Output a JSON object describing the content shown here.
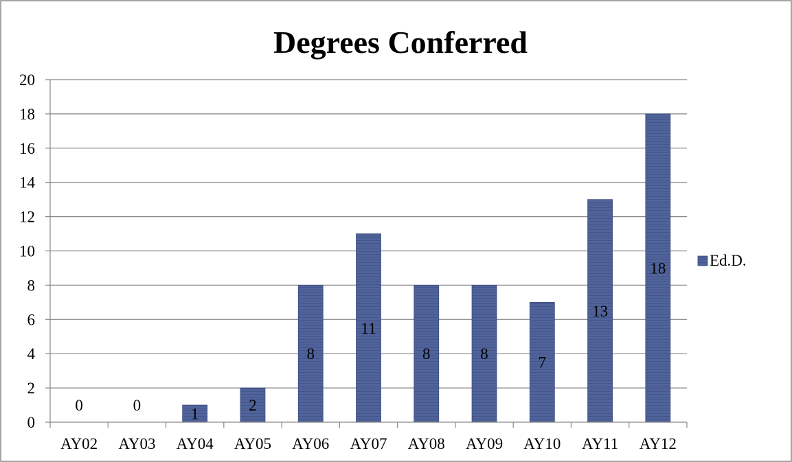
{
  "chart_data": {
    "type": "bar",
    "title": "Degrees Conferred",
    "xlabel": "",
    "ylabel": "",
    "categories": [
      "AY02",
      "AY03",
      "AY04",
      "AY05",
      "AY06",
      "AY07",
      "AY08",
      "AY09",
      "AY10",
      "AY11",
      "AY12"
    ],
    "series": [
      {
        "name": "Ed.D.",
        "values": [
          0,
          0,
          1,
          2,
          8,
          11,
          8,
          8,
          7,
          13,
          18
        ],
        "color": "#4f6196"
      }
    ],
    "ylim": [
      0,
      20
    ],
    "yticks": [
      0,
      2,
      4,
      6,
      8,
      10,
      12,
      14,
      16,
      18,
      20
    ],
    "grid": true,
    "legend": "right",
    "data_labels": true
  }
}
